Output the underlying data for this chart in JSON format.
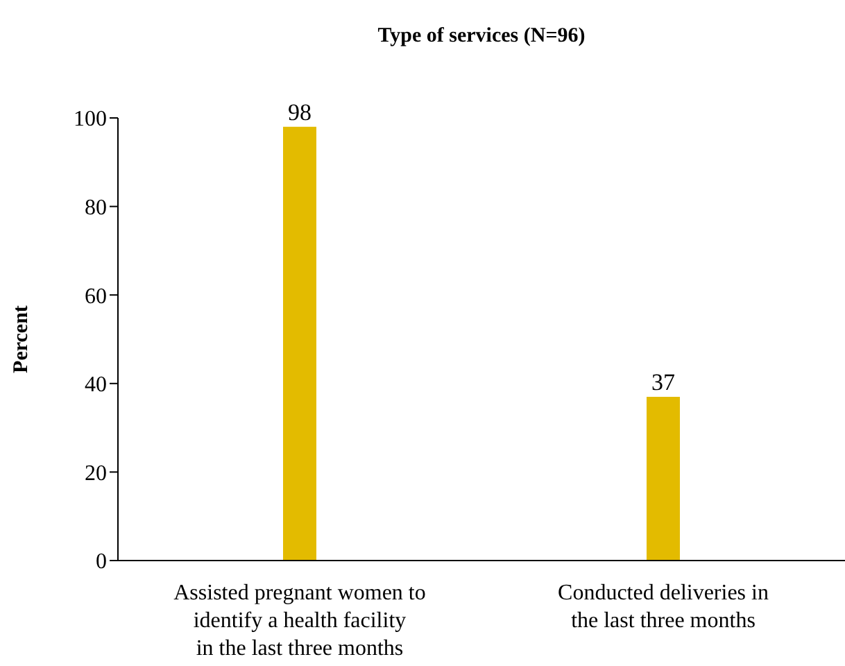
{
  "chart_data": {
    "type": "bar",
    "title": "Type of services (N=96)",
    "ylabel": "Percent",
    "categories": [
      "Assisted pregnant women to identify a health facility in the last three months",
      "Conducted deliveries in the last three months"
    ],
    "values": [
      98,
      37
    ],
    "color": "#e3bb00",
    "ylim": [
      0,
      100
    ],
    "yticks": [
      0,
      20,
      40,
      60,
      80,
      100
    ],
    "grid": false,
    "legend": false,
    "data_labels": true
  }
}
